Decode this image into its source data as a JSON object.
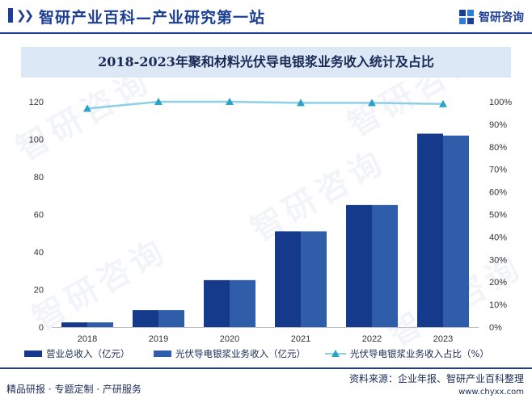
{
  "header": {
    "site_title": "智研产业百科—产业研究第一站",
    "brand": "智研咨询",
    "brand_icon": "zhiyan-logo-icon",
    "nav_icon": "double-chevron-icon"
  },
  "watermark_text": "智研咨询",
  "colors": {
    "primary": "#1c3f94",
    "series_revenue": "#153a8c",
    "series_silver_paste": "#2f5daa",
    "series_ratio_line": "#8ecfe8",
    "series_ratio_marker": "#2ba3c8",
    "title_box": "#dde8f6"
  },
  "chart_data": {
    "type": "bar",
    "title": "2018-2023年聚和材料光伏导电银浆业务收入统计及占比",
    "categories": [
      "2018",
      "2019",
      "2020",
      "2021",
      "2022",
      "2023"
    ],
    "series": [
      {
        "name": "营业总收入（亿元）",
        "type": "bar",
        "axis": "left",
        "values": [
          2.5,
          9.0,
          25.0,
          51.0,
          65.0,
          103.0
        ]
      },
      {
        "name": "光伏导电银浆业务收入（亿元）",
        "type": "bar",
        "axis": "left",
        "values": [
          2.5,
          9.0,
          25.0,
          51.0,
          65.0,
          102.0
        ]
      },
      {
        "name": "光伏导电银浆业务收入占比（%）",
        "type": "line",
        "axis": "right",
        "values": [
          97,
          100,
          100,
          99.5,
          99.5,
          99
        ]
      }
    ],
    "y_left": {
      "ylim": [
        0,
        120
      ],
      "ticks": [
        "0",
        "20",
        "40",
        "60",
        "80",
        "100",
        "120"
      ]
    },
    "y_right": {
      "ylim": [
        0,
        100
      ],
      "ticks": [
        "0%",
        "10%",
        "20%",
        "30%",
        "40%",
        "50%",
        "60%",
        "70%",
        "80%",
        "90%",
        "100%"
      ]
    },
    "grid": false,
    "legend_position": "bottom"
  },
  "footer": {
    "left_text": "精品研报 · 专题定制 · 产研服务",
    "source": "资料来源：企业年报、智研产业百科整理",
    "url": "www.chyxx.com"
  }
}
